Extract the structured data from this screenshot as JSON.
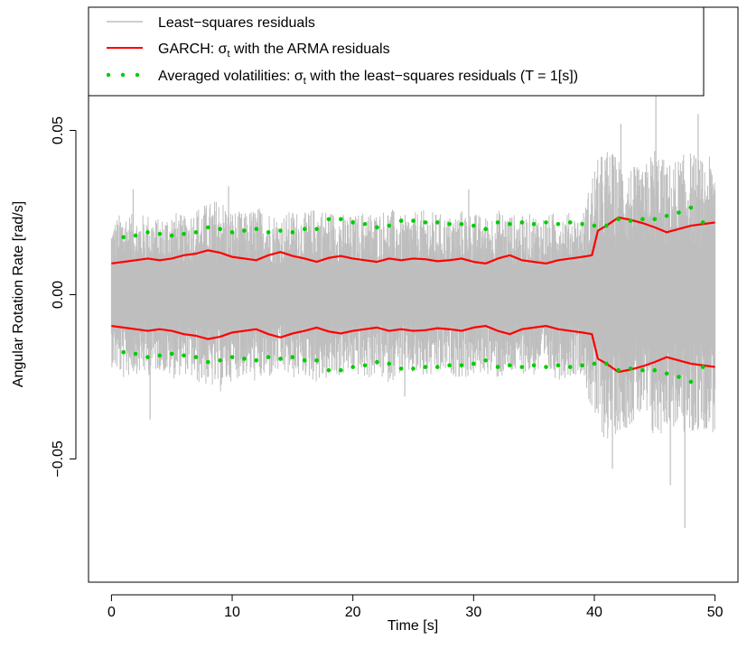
{
  "chart_data": {
    "type": "line",
    "title": "",
    "xlabel": "Time [s]",
    "ylabel": "Angular Rotation Rate [rad/s]",
    "xlim": [
      -1.9,
      51.9
    ],
    "ylim": [
      -0.0875,
      0.0875
    ],
    "x_ticks": [
      0,
      10,
      20,
      30,
      40,
      50
    ],
    "x_tick_labels": [
      "0",
      "10",
      "20",
      "30",
      "40",
      "50"
    ],
    "y_ticks": [
      -0.05,
      0,
      0.05
    ],
    "y_tick_labels": [
      "−0.05",
      "0.00",
      "0.05"
    ],
    "grid": false,
    "legend_position": "top-left",
    "legend": [
      {
        "label_main": "Least−squares residuals",
        "sub": "",
        "label_tail": "",
        "style": "line-thin-gray"
      },
      {
        "label_main": "GARCH: σ",
        "sub": "t",
        "label_tail": " with the ARMA residuals",
        "style": "line-red"
      },
      {
        "label_main": "Averaged volatilities: σ",
        "sub": "t",
        "label_tail": " with the least−squares residuals (T = 1[s])",
        "style": "dots-green"
      }
    ],
    "colors": {
      "residuals": "#bebebe",
      "garch": "#ff0000",
      "averaged": "#00cd00"
    },
    "series": [
      {
        "name": "Least−squares residuals",
        "kind": "band",
        "x": [
          0,
          1,
          2,
          3,
          4,
          5,
          6,
          7,
          8,
          9,
          10,
          11,
          12,
          13,
          14,
          15,
          16,
          17,
          18,
          19,
          20,
          21,
          22,
          23,
          24,
          25,
          26,
          27,
          28,
          29,
          30,
          31,
          32,
          33,
          34,
          35,
          36,
          37,
          38,
          39,
          40,
          41,
          42,
          43,
          44,
          45,
          46,
          47,
          48,
          49,
          50
        ],
        "upper": [
          0.022,
          0.026,
          0.024,
          0.025,
          0.023,
          0.026,
          0.024,
          0.027,
          0.028,
          0.03,
          0.026,
          0.025,
          0.027,
          0.026,
          0.024,
          0.026,
          0.025,
          0.027,
          0.026,
          0.025,
          0.024,
          0.026,
          0.025,
          0.027,
          0.024,
          0.025,
          0.026,
          0.025,
          0.024,
          0.026,
          0.025,
          0.024,
          0.026,
          0.025,
          0.024,
          0.025,
          0.024,
          0.026,
          0.025,
          0.024,
          0.04,
          0.045,
          0.042,
          0.04,
          0.038,
          0.046,
          0.04,
          0.042,
          0.044,
          0.041,
          0.043
        ],
        "lower": [
          -0.022,
          -0.026,
          -0.024,
          -0.025,
          -0.023,
          -0.026,
          -0.024,
          -0.027,
          -0.028,
          -0.03,
          -0.026,
          -0.025,
          -0.027,
          -0.026,
          -0.024,
          -0.026,
          -0.025,
          -0.027,
          -0.026,
          -0.025,
          -0.024,
          -0.026,
          -0.025,
          -0.027,
          -0.024,
          -0.025,
          -0.026,
          -0.025,
          -0.024,
          -0.026,
          -0.025,
          -0.024,
          -0.026,
          -0.025,
          -0.024,
          -0.025,
          -0.024,
          -0.026,
          -0.025,
          -0.024,
          -0.04,
          -0.045,
          -0.042,
          -0.04,
          -0.038,
          -0.046,
          -0.04,
          -0.042,
          -0.044,
          -0.041,
          -0.043
        ],
        "spikes": [
          {
            "x": 3.2,
            "y": -0.038
          },
          {
            "x": 1.8,
            "y": 0.032
          },
          {
            "x": 9.7,
            "y": 0.033
          },
          {
            "x": 24.3,
            "y": -0.031
          },
          {
            "x": 29.6,
            "y": 0.032
          },
          {
            "x": 42.2,
            "y": 0.052
          },
          {
            "x": 45.1,
            "y": 0.062
          },
          {
            "x": 47.5,
            "y": -0.071
          },
          {
            "x": 48.6,
            "y": 0.055
          },
          {
            "x": 41.5,
            "y": -0.053
          },
          {
            "x": 46.3,
            "y": -0.058
          }
        ]
      },
      {
        "name": "GARCH: σt with the ARMA residuals",
        "kind": "line-pair",
        "x": [
          0,
          1,
          2,
          3,
          4,
          5,
          6,
          7,
          8,
          9,
          10,
          11,
          12,
          13,
          14,
          15,
          16,
          17,
          18,
          19,
          20,
          21,
          22,
          23,
          24,
          25,
          26,
          27,
          28,
          29,
          30,
          31,
          32,
          33,
          34,
          35,
          36,
          37,
          38,
          39,
          39.8,
          40.3,
          41,
          42,
          43,
          44,
          45,
          46,
          47,
          48,
          49,
          50
        ],
        "upper": [
          0.0095,
          0.01,
          0.0105,
          0.011,
          0.0105,
          0.011,
          0.012,
          0.0125,
          0.0135,
          0.0128,
          0.0115,
          0.011,
          0.0105,
          0.012,
          0.013,
          0.0118,
          0.011,
          0.01,
          0.0112,
          0.0118,
          0.011,
          0.0105,
          0.01,
          0.011,
          0.0105,
          0.011,
          0.0108,
          0.0102,
          0.0105,
          0.011,
          0.01,
          0.0095,
          0.011,
          0.012,
          0.0105,
          0.01,
          0.0095,
          0.0105,
          0.011,
          0.0115,
          0.012,
          0.0195,
          0.021,
          0.0235,
          0.0228,
          0.0218,
          0.0205,
          0.019,
          0.02,
          0.021,
          0.0215,
          0.022
        ],
        "lower": [
          -0.0095,
          -0.01,
          -0.0105,
          -0.011,
          -0.0105,
          -0.011,
          -0.012,
          -0.0125,
          -0.0135,
          -0.0128,
          -0.0115,
          -0.011,
          -0.0105,
          -0.012,
          -0.013,
          -0.0118,
          -0.011,
          -0.01,
          -0.0112,
          -0.0118,
          -0.011,
          -0.0105,
          -0.01,
          -0.011,
          -0.0105,
          -0.011,
          -0.0108,
          -0.0102,
          -0.0105,
          -0.011,
          -0.01,
          -0.0095,
          -0.011,
          -0.012,
          -0.0105,
          -0.01,
          -0.0095,
          -0.0105,
          -0.011,
          -0.0115,
          -0.012,
          -0.0195,
          -0.021,
          -0.0235,
          -0.0228,
          -0.0218,
          -0.0205,
          -0.019,
          -0.02,
          -0.021,
          -0.0215,
          -0.022
        ]
      },
      {
        "name": "Averaged volatilities: σt with the least−squares residuals (T = 1[s])",
        "kind": "dots-pair",
        "x": [
          1,
          2,
          3,
          4,
          5,
          6,
          7,
          8,
          9,
          10,
          11,
          12,
          13,
          14,
          15,
          16,
          17,
          18,
          19,
          20,
          21,
          22,
          23,
          24,
          25,
          26,
          27,
          28,
          29,
          30,
          31,
          32,
          33,
          34,
          35,
          36,
          37,
          38,
          39,
          40,
          41,
          42,
          43,
          44,
          45,
          46,
          47,
          48,
          49
        ],
        "upper": [
          0.0175,
          0.018,
          0.019,
          0.0185,
          0.018,
          0.0185,
          0.019,
          0.0205,
          0.02,
          0.019,
          0.0195,
          0.02,
          0.019,
          0.0195,
          0.019,
          0.02,
          0.02,
          0.023,
          0.023,
          0.022,
          0.0215,
          0.0205,
          0.021,
          0.0225,
          0.0225,
          0.022,
          0.022,
          0.0215,
          0.0215,
          0.021,
          0.02,
          0.022,
          0.0215,
          0.022,
          0.0215,
          0.022,
          0.0215,
          0.022,
          0.0215,
          0.021,
          0.021,
          0.023,
          0.0225,
          0.023,
          0.023,
          0.024,
          0.025,
          0.0265,
          0.022
        ],
        "lower": [
          -0.0175,
          -0.018,
          -0.019,
          -0.0185,
          -0.018,
          -0.0185,
          -0.019,
          -0.0205,
          -0.02,
          -0.019,
          -0.0195,
          -0.02,
          -0.019,
          -0.0195,
          -0.019,
          -0.02,
          -0.02,
          -0.023,
          -0.023,
          -0.022,
          -0.0215,
          -0.0205,
          -0.021,
          -0.0225,
          -0.0225,
          -0.022,
          -0.022,
          -0.0215,
          -0.0215,
          -0.021,
          -0.02,
          -0.022,
          -0.0215,
          -0.022,
          -0.0215,
          -0.022,
          -0.0215,
          -0.022,
          -0.0215,
          -0.021,
          -0.021,
          -0.023,
          -0.0225,
          -0.023,
          -0.023,
          -0.024,
          -0.025,
          -0.0265,
          -0.022
        ]
      }
    ]
  }
}
